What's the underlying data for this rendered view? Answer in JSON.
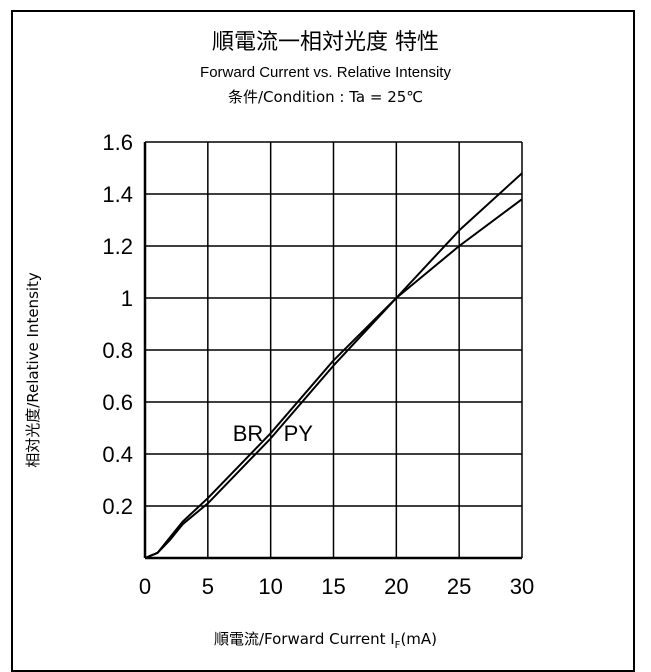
{
  "chart_data": {
    "type": "line",
    "title_cn": "順電流一相対光度 特性",
    "title_en": "Forward Current vs. Relative Intensity",
    "condition": "条件/Condition : Ta = 25℃",
    "xlabel_prefix": "順電流/Forward Current I",
    "xlabel_sub": "F",
    "xlabel_suffix": "(mA)",
    "ylabel": "相対光度/Relative Intensity",
    "xlim": [
      0,
      30
    ],
    "ylim": [
      0,
      1.6
    ],
    "x_ticks": [
      "0",
      "5",
      "10",
      "15",
      "20",
      "25",
      "30"
    ],
    "y_ticks": [
      "0.2",
      "0.4",
      "0.6",
      "0.8",
      "1",
      "1.2",
      "1.4",
      "1.6"
    ],
    "grid": true,
    "series": [
      {
        "name": "BR",
        "x": [
          0,
          1,
          2,
          3,
          5,
          10,
          15,
          20,
          25,
          30
        ],
        "y": [
          0,
          0.02,
          0.08,
          0.14,
          0.23,
          0.48,
          0.76,
          1.0,
          1.26,
          1.48
        ]
      },
      {
        "name": "PY",
        "x": [
          0,
          1,
          2,
          3,
          5,
          10,
          15,
          20,
          25,
          30
        ],
        "y": [
          0,
          0.02,
          0.07,
          0.13,
          0.21,
          0.46,
          0.74,
          1.0,
          1.2,
          1.38
        ]
      }
    ],
    "annotations": [
      {
        "text": "BR",
        "x": 8.2,
        "y": 0.45
      },
      {
        "text": "PY",
        "x": 12.2,
        "y": 0.45
      }
    ]
  }
}
